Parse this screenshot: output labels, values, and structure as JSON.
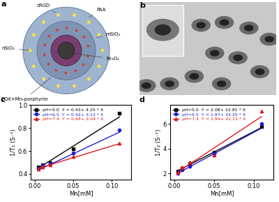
{
  "diagram": {
    "panel": "a",
    "labels": [
      "cRGD",
      "PAA",
      "mSiO₂",
      "nSiO₂",
      "Fe₃O₄",
      "DOX+Mn-porphyrin"
    ]
  },
  "micrograph": {
    "panel": "b"
  },
  "chart_data": [
    {
      "type": "scatter",
      "title": "c",
      "x_label": "Mn[mM]",
      "y_label": "1/T₁ (S⁻¹)",
      "xlim": [
        -0.005,
        0.125
      ],
      "xticks": [
        {
          "value": 0,
          "label": "0.00"
        },
        {
          "value": 0.05,
          "label": "0.05"
        },
        {
          "value": 0.1,
          "label": "0.10"
        }
      ],
      "ylim": [
        0.35,
        1.0
      ],
      "yticks": [
        {
          "value": 0.4,
          "label": "0.4"
        },
        {
          "value": 0.6,
          "label": "0.6"
        },
        {
          "value": 0.8,
          "label": "0.8"
        },
        {
          "value": 1,
          "label": "1.0"
        }
      ],
      "legend": "upper left",
      "x": [
        0.005,
        0.01,
        0.02,
        0.05,
        0.11
      ],
      "series": [
        {
          "name": "pH=5.0  Y = 0.43+ 4.25 * X",
          "color": "#000000",
          "marker": "square",
          "values": [
            0.46,
            0.48,
            0.5,
            0.62,
            0.93
          ],
          "fit": {
            "intercept": 0.43,
            "slope": 4.25
          }
        },
        {
          "name": "pH=6.5  Y = 0.42+ 3.13 * X",
          "color": "#1f1fd0",
          "marker": "circle",
          "values": [
            0.45,
            0.47,
            0.49,
            0.58,
            0.78
          ],
          "fit": {
            "intercept": 0.42,
            "slope": 3.13
          }
        },
        {
          "name": "pH=7.4  Y = 0.44+ 2.04 * X",
          "color": "#e0191b",
          "marker": "triangle",
          "values": [
            0.44,
            0.46,
            0.48,
            0.55,
            0.67
          ],
          "fit": {
            "intercept": 0.44,
            "slope": 2.04
          }
        }
      ]
    },
    {
      "type": "scatter",
      "title": "d",
      "x_label": "Mn[mM]",
      "y_label": "1/T₂ (S⁻¹)",
      "xlim": [
        -0.005,
        0.125
      ],
      "xticks": [
        {
          "value": 0,
          "label": "0.00"
        },
        {
          "value": 0.05,
          "label": "0.05"
        },
        {
          "value": 0.1,
          "label": "0.10"
        }
      ],
      "ylim": [
        1.5,
        7.5
      ],
      "yticks": [
        2,
        4,
        6
      ],
      "legend": "upper left",
      "x": [
        0.005,
        0.01,
        0.02,
        0.05,
        0.11
      ],
      "series": [
        {
          "name": "pH=5.0  Y = 2.08+ 32.81 * X",
          "color": "#000000",
          "marker": "square",
          "values": [
            2.2,
            2.4,
            2.8,
            3.7,
            5.8
          ],
          "fit": {
            "intercept": 2.08,
            "slope": 32.81
          }
        },
        {
          "name": "pH=6.5  Y = 1.87+ 34.25 * X",
          "color": "#1f1fd0",
          "marker": "circle",
          "values": [
            2.0,
            2.3,
            2.6,
            3.6,
            6.0
          ],
          "fit": {
            "intercept": 1.87,
            "slope": 34.25
          }
        },
        {
          "name": "pH=7.4  Y = 1.94+ 42.11 * X",
          "color": "#e0191b",
          "marker": "triangle",
          "values": [
            2.1,
            2.5,
            2.9,
            3.5,
            7.0
          ],
          "fit": {
            "intercept": 1.94,
            "slope": 42.11
          }
        }
      ]
    }
  ]
}
